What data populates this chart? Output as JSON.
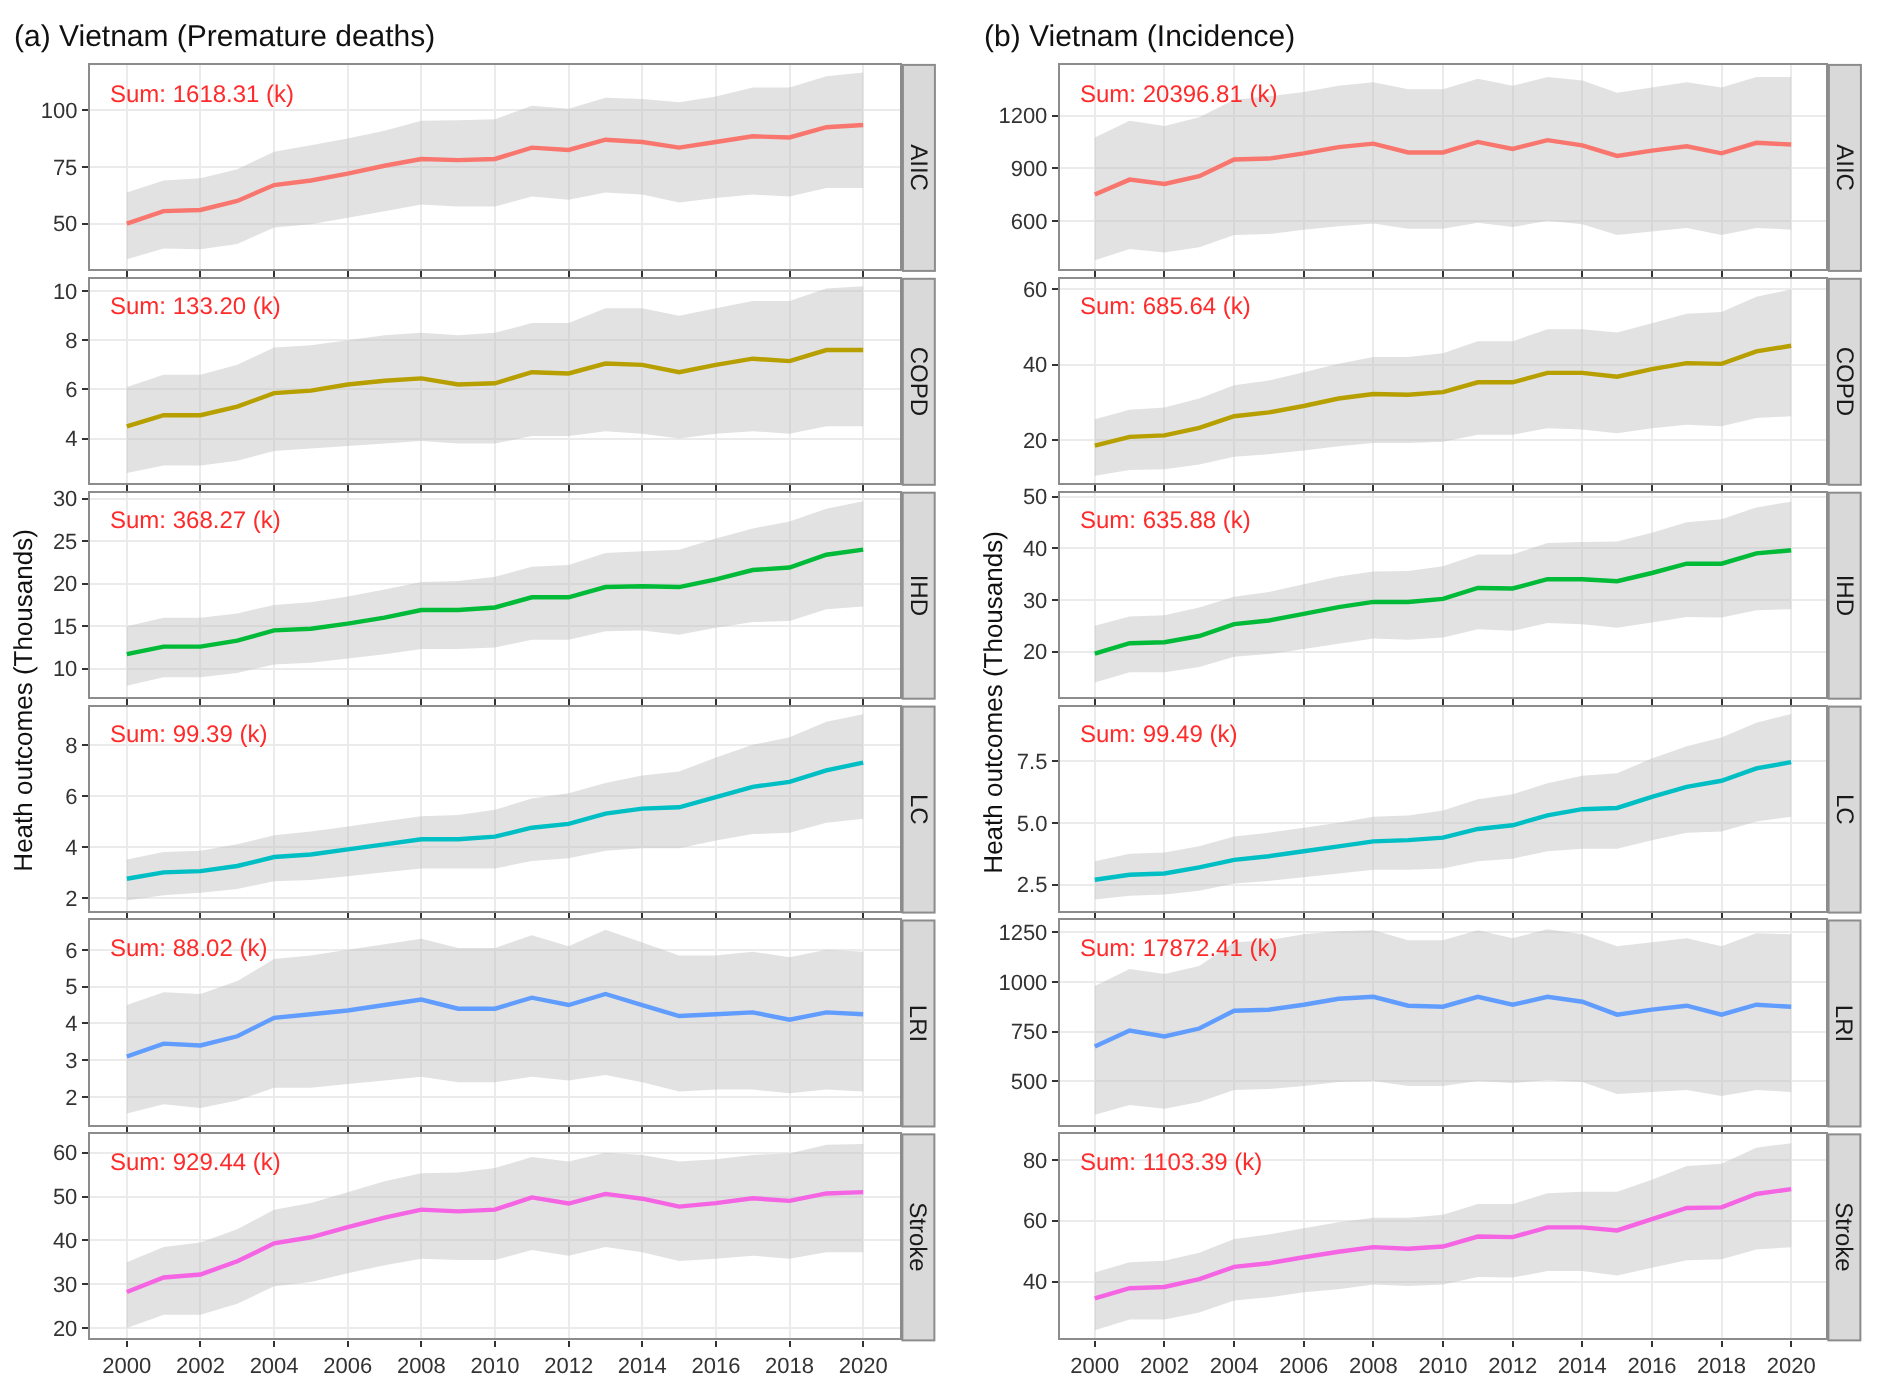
{
  "chart_data": [
    {
      "type": "line",
      "title": "(a) Vietnam (Premature deaths)",
      "x": [
        2000,
        2001,
        2002,
        2003,
        2004,
        2005,
        2006,
        2007,
        2008,
        2009,
        2010,
        2011,
        2012,
        2013,
        2014,
        2015,
        2016,
        2017,
        2018,
        2019,
        2020
      ],
      "xlim": [
        1999,
        2021
      ],
      "xticks": [
        2000,
        2002,
        2004,
        2006,
        2008,
        2010,
        2012,
        2014,
        2016,
        2018,
        2020
      ],
      "ylim": [
        30,
        120
      ],
      "yticks": [
        50,
        75,
        100
      ],
      "grid": true,
      "tick_labels": "y",
      "annotations": [
        "Sum: 1618.31 (k)"
      ],
      "series": [
        {
          "name": "AIIC",
          "color": "#f8766d",
          "values": [
            50,
            55.5,
            56,
            60,
            67,
            69,
            72,
            75.5,
            78.5,
            78,
            78.5,
            83.5,
            82.5,
            87,
            86,
            83.5,
            86,
            88.5,
            88,
            92.5,
            93.5
          ],
          "upper": [
            63.7,
            69,
            70,
            74,
            81.7,
            84.6,
            87.5,
            91,
            95.3,
            95.6,
            96,
            102,
            100.6,
            105.5,
            105,
            103.5,
            106,
            110,
            110,
            115,
            116.6
          ],
          "lower": [
            34.3,
            39,
            38.7,
            41,
            48.3,
            49.7,
            52.6,
            55.5,
            58.4,
            57.5,
            57.5,
            62,
            60.5,
            63.7,
            62.8,
            59.3,
            61.3,
            62.8,
            62,
            65.7,
            65.7
          ]
        }
      ]
    },
    {
      "type": "line",
      "x": [
        2000,
        2001,
        2002,
        2003,
        2004,
        2005,
        2006,
        2007,
        2008,
        2009,
        2010,
        2011,
        2012,
        2013,
        2014,
        2015,
        2016,
        2017,
        2018,
        2019,
        2020
      ],
      "xlim": [
        1999,
        2021
      ],
      "xticks": [
        2000,
        2002,
        2004,
        2006,
        2008,
        2010,
        2012,
        2014,
        2016,
        2018,
        2020
      ],
      "ylim": [
        2.2,
        10.5
      ],
      "yticks": [
        4,
        6,
        8,
        10
      ],
      "grid": true,
      "tick_labels": "y",
      "annotations": [
        "Sum: 133.20 (k)"
      ],
      "series": [
        {
          "name": "COPD",
          "color": "#b79f00",
          "values": [
            4.5,
            4.95,
            4.95,
            5.3,
            5.85,
            5.95,
            6.2,
            6.35,
            6.45,
            6.2,
            6.25,
            6.7,
            6.65,
            7.05,
            7.0,
            6.7,
            7.0,
            7.25,
            7.15,
            7.6,
            7.6
          ],
          "upper": [
            6.1,
            6.6,
            6.6,
            7.0,
            7.7,
            7.8,
            8.0,
            8.2,
            8.3,
            8.2,
            8.3,
            8.7,
            8.7,
            9.3,
            9.3,
            9.0,
            9.3,
            9.6,
            9.6,
            10.1,
            10.2
          ],
          "lower": [
            2.6,
            2.9,
            2.9,
            3.1,
            3.5,
            3.6,
            3.7,
            3.8,
            3.9,
            3.8,
            3.8,
            4.1,
            4.1,
            4.3,
            4.2,
            4.0,
            4.2,
            4.3,
            4.2,
            4.5,
            4.5
          ]
        }
      ]
    },
    {
      "type": "line",
      "ylabel": "Heath outcomes (Thousands)",
      "x": [
        2000,
        2001,
        2002,
        2003,
        2004,
        2005,
        2006,
        2007,
        2008,
        2009,
        2010,
        2011,
        2012,
        2013,
        2014,
        2015,
        2016,
        2017,
        2018,
        2019,
        2020
      ],
      "xlim": [
        1999,
        2021
      ],
      "xticks": [
        2000,
        2002,
        2004,
        2006,
        2008,
        2010,
        2012,
        2014,
        2016,
        2018,
        2020
      ],
      "ylim": [
        6.7,
        30.7
      ],
      "yticks": [
        10,
        15,
        20,
        25,
        30
      ],
      "grid": true,
      "tick_labels": "y",
      "annotations": [
        "Sum: 368.27 (k)"
      ],
      "series": [
        {
          "name": "IHD",
          "color": "#00ba38",
          "values": [
            11.7,
            12.6,
            12.6,
            13.3,
            14.5,
            14.7,
            15.3,
            16.0,
            16.9,
            16.9,
            17.2,
            18.4,
            18.4,
            19.6,
            19.7,
            19.6,
            20.5,
            21.6,
            21.9,
            23.4,
            24.0
          ],
          "upper": [
            15,
            16,
            16,
            16.5,
            17.5,
            17.8,
            18.5,
            19.3,
            20.2,
            20.3,
            20.8,
            22.0,
            22.2,
            23.6,
            23.8,
            24.0,
            25.3,
            26.5,
            27.3,
            28.8,
            29.7
          ],
          "lower": [
            8,
            9,
            9,
            9.5,
            10.5,
            10.7,
            11.2,
            11.7,
            12.3,
            12.3,
            12.5,
            13.4,
            13.4,
            14.4,
            14.5,
            14.0,
            14.8,
            15.5,
            15.6,
            17,
            17.3
          ]
        }
      ]
    },
    {
      "type": "line",
      "x": [
        2000,
        2001,
        2002,
        2003,
        2004,
        2005,
        2006,
        2007,
        2008,
        2009,
        2010,
        2011,
        2012,
        2013,
        2014,
        2015,
        2016,
        2017,
        2018,
        2019,
        2020
      ],
      "xlim": [
        1999,
        2021
      ],
      "xticks": [
        2000,
        2002,
        2004,
        2006,
        2008,
        2010,
        2012,
        2014,
        2016,
        2018,
        2020
      ],
      "ylim": [
        1.5,
        9.5
      ],
      "yticks": [
        2,
        4,
        6,
        8
      ],
      "grid": true,
      "tick_labels": "y",
      "annotations": [
        "Sum: 99.39 (k)"
      ],
      "series": [
        {
          "name": "LC",
          "color": "#00bfc4",
          "values": [
            2.75,
            3.0,
            3.05,
            3.25,
            3.6,
            3.7,
            3.9,
            4.1,
            4.3,
            4.3,
            4.4,
            4.75,
            4.9,
            5.3,
            5.5,
            5.55,
            5.95,
            6.35,
            6.55,
            7.0,
            7.3
          ],
          "upper": [
            3.5,
            3.8,
            3.85,
            4.1,
            4.45,
            4.6,
            4.8,
            5.0,
            5.2,
            5.25,
            5.45,
            5.9,
            6.1,
            6.5,
            6.8,
            6.95,
            7.5,
            8.0,
            8.3,
            8.9,
            9.2
          ],
          "lower": [
            1.9,
            2.1,
            2.2,
            2.35,
            2.65,
            2.7,
            2.85,
            3.0,
            3.15,
            3.15,
            3.15,
            3.45,
            3.55,
            3.85,
            3.95,
            3.95,
            4.25,
            4.5,
            4.55,
            4.95,
            5.1
          ]
        }
      ]
    },
    {
      "type": "line",
      "x": [
        2000,
        2001,
        2002,
        2003,
        2004,
        2005,
        2006,
        2007,
        2008,
        2009,
        2010,
        2011,
        2012,
        2013,
        2014,
        2015,
        2016,
        2017,
        2018,
        2019,
        2020
      ],
      "xlim": [
        1999,
        2021
      ],
      "xticks": [
        2000,
        2002,
        2004,
        2006,
        2008,
        2010,
        2012,
        2014,
        2016,
        2018,
        2020
      ],
      "ylim": [
        1.25,
        6.8
      ],
      "yticks": [
        2,
        3,
        4,
        5,
        6
      ],
      "grid": true,
      "tick_labels": "y",
      "annotations": [
        "Sum: 88.02 (k)"
      ],
      "series": [
        {
          "name": "LRI",
          "color": "#619cff",
          "values": [
            3.1,
            3.45,
            3.4,
            3.65,
            4.15,
            4.25,
            4.35,
            4.5,
            4.65,
            4.4,
            4.4,
            4.7,
            4.5,
            4.8,
            4.5,
            4.2,
            4.25,
            4.3,
            4.1,
            4.3,
            4.25
          ],
          "upper": [
            4.5,
            4.85,
            4.8,
            5.15,
            5.75,
            5.85,
            6.0,
            6.15,
            6.3,
            6.05,
            6.05,
            6.4,
            6.1,
            6.55,
            6.2,
            5.85,
            5.85,
            5.95,
            5.8,
            6.0,
            5.95
          ],
          "lower": [
            1.55,
            1.8,
            1.7,
            1.9,
            2.25,
            2.25,
            2.35,
            2.45,
            2.55,
            2.4,
            2.4,
            2.55,
            2.45,
            2.6,
            2.4,
            2.15,
            2.2,
            2.2,
            2.1,
            2.2,
            2.15
          ]
        }
      ]
    },
    {
      "type": "line",
      "x": [
        2000,
        2001,
        2002,
        2003,
        2004,
        2005,
        2006,
        2007,
        2008,
        2009,
        2010,
        2011,
        2012,
        2013,
        2014,
        2015,
        2016,
        2017,
        2018,
        2019,
        2020
      ],
      "xlim": [
        1999,
        2021
      ],
      "xticks": [
        2000,
        2002,
        2004,
        2006,
        2008,
        2010,
        2012,
        2014,
        2016,
        2018,
        2020
      ],
      "ylim": [
        17.6,
        64.2
      ],
      "yticks": [
        20,
        30,
        40,
        50,
        60
      ],
      "grid": true,
      "annotations": [
        "Sum: 929.44 (k)"
      ],
      "series": [
        {
          "name": "Stroke",
          "color": "#f564e3",
          "values": [
            28.2,
            31.5,
            32.2,
            35.2,
            39.3,
            40.7,
            43,
            45.2,
            47,
            46.6,
            47,
            49.8,
            48.4,
            50.6,
            49.5,
            47.7,
            48.5,
            49.6,
            49,
            50.7,
            51
          ],
          "upper": [
            35,
            38.5,
            39.5,
            42.5,
            47,
            48.5,
            51,
            53.5,
            55.3,
            55.5,
            56.5,
            59,
            58,
            60,
            59.5,
            58,
            58.5,
            59.5,
            59.8,
            61.8,
            62
          ],
          "lower": [
            20,
            23,
            23,
            25.5,
            29.5,
            30.5,
            32.5,
            34.3,
            35.8,
            35.5,
            35.5,
            37.8,
            36.5,
            38.5,
            37.3,
            35.3,
            35.8,
            36.5,
            35.8,
            37.3,
            37.3
          ]
        }
      ]
    },
    {
      "type": "line",
      "title": "(b) Vietnam (Incidence)",
      "x": [
        2000,
        2001,
        2002,
        2003,
        2004,
        2005,
        2006,
        2007,
        2008,
        2009,
        2010,
        2011,
        2012,
        2013,
        2014,
        2015,
        2016,
        2017,
        2018,
        2019,
        2020
      ],
      "xlim": [
        1999,
        2021
      ],
      "xticks": [
        2000,
        2002,
        2004,
        2006,
        2008,
        2010,
        2012,
        2014,
        2016,
        2018,
        2020
      ],
      "ylim": [
        326,
        1489
      ],
      "yticks": [
        600,
        900,
        1200
      ],
      "grid": true,
      "tick_labels": "y",
      "annotations": [
        "Sum: 20396.81 (k)"
      ],
      "series": [
        {
          "name": "AIIC",
          "color": "#f8766d",
          "values": [
            750,
            835,
            810,
            855,
            950,
            955,
            985,
            1020,
            1040,
            990,
            990,
            1050,
            1010,
            1060,
            1030,
            970,
            1000,
            1025,
            985,
            1045,
            1035
          ],
          "upper": [
            1075,
            1170,
            1140,
            1190,
            1290,
            1310,
            1335,
            1370,
            1390,
            1350,
            1350,
            1410,
            1370,
            1420,
            1400,
            1330,
            1360,
            1390,
            1360,
            1420,
            1420
          ],
          "lower": [
            375,
            440,
            420,
            450,
            520,
            525,
            550,
            570,
            585,
            555,
            555,
            590,
            565,
            600,
            580,
            520,
            540,
            560,
            520,
            560,
            550
          ]
        }
      ]
    },
    {
      "type": "line",
      "x": [
        2000,
        2001,
        2002,
        2003,
        2004,
        2005,
        2006,
        2007,
        2008,
        2009,
        2010,
        2011,
        2012,
        2013,
        2014,
        2015,
        2016,
        2017,
        2018,
        2019,
        2020
      ],
      "xlim": [
        1999,
        2021
      ],
      "xticks": [
        2000,
        2002,
        2004,
        2006,
        2008,
        2010,
        2012,
        2014,
        2016,
        2018,
        2020
      ],
      "ylim": [
        8.6,
        62.8
      ],
      "yticks": [
        20,
        40,
        60
      ],
      "grid": true,
      "tick_labels": "y",
      "annotations": [
        "Sum: 685.64 (k)"
      ],
      "series": [
        {
          "name": "COPD",
          "color": "#b79f00",
          "values": [
            18.5,
            20.8,
            21.2,
            23.2,
            26.3,
            27.3,
            29,
            31,
            32.2,
            32,
            32.7,
            35.3,
            35.3,
            37.8,
            37.8,
            36.8,
            38.8,
            40.4,
            40.2,
            43.5,
            45
          ],
          "upper": [
            25.5,
            28,
            28.6,
            31,
            34.5,
            35.8,
            38,
            40.2,
            42,
            42,
            43,
            46.2,
            46.2,
            49.4,
            49.4,
            48.5,
            51,
            53.5,
            54,
            58,
            60
          ],
          "lower": [
            10.5,
            12,
            12.2,
            13.5,
            15.5,
            16.2,
            17.2,
            18.3,
            19.2,
            19.2,
            19.5,
            21.4,
            21.4,
            23.1,
            22.8,
            21.8,
            23.1,
            24,
            23.6,
            25.8,
            26.3
          ]
        }
      ]
    },
    {
      "type": "line",
      "ylabel": "Heath outcomes (Thousands)",
      "x": [
        2000,
        2001,
        2002,
        2003,
        2004,
        2005,
        2006,
        2007,
        2008,
        2009,
        2010,
        2011,
        2012,
        2013,
        2014,
        2015,
        2016,
        2017,
        2018,
        2019,
        2020
      ],
      "xlim": [
        1999,
        2021
      ],
      "xticks": [
        2000,
        2002,
        2004,
        2006,
        2008,
        2010,
        2012,
        2014,
        2016,
        2018,
        2020
      ],
      "ylim": [
        11.25,
        50.75
      ],
      "yticks": [
        20,
        30,
        40,
        50
      ],
      "grid": true,
      "tick_labels": "y",
      "annotations": [
        "Sum: 635.88 (k)"
      ],
      "series": [
        {
          "name": "IHD",
          "color": "#00ba38",
          "values": [
            19.6,
            21.6,
            21.8,
            23,
            25.3,
            26,
            27.3,
            28.6,
            29.6,
            29.6,
            30.2,
            32.3,
            32.2,
            34,
            34,
            33.6,
            35.2,
            37,
            37,
            39,
            39.6
          ],
          "upper": [
            25,
            26.8,
            27,
            28.5,
            30.6,
            31.5,
            33,
            34.5,
            35.5,
            35.6,
            36.5,
            38.8,
            38.8,
            41,
            41.2,
            41.3,
            43,
            45,
            45.6,
            47.9,
            49
          ],
          "lower": [
            14,
            16,
            16,
            17,
            19,
            19.5,
            20.5,
            21.5,
            22.5,
            22.3,
            22.7,
            24.3,
            24,
            25.5,
            25.3,
            24.6,
            25.6,
            26.7,
            26.6,
            28,
            28.2
          ]
        }
      ]
    },
    {
      "type": "line",
      "x": [
        2000,
        2001,
        2002,
        2003,
        2004,
        2005,
        2006,
        2007,
        2008,
        2009,
        2010,
        2011,
        2012,
        2013,
        2014,
        2015,
        2016,
        2017,
        2018,
        2019,
        2020
      ],
      "xlim": [
        1999,
        2021
      ],
      "xticks": [
        2000,
        2002,
        2004,
        2006,
        2008,
        2010,
        2012,
        2014,
        2016,
        2018,
        2020
      ],
      "ylim": [
        1.45,
        9.7
      ],
      "yticks": [
        {
          "value": 2.5,
          "label": "2.5"
        },
        {
          "value": 5,
          "label": "5.0"
        },
        {
          "value": 7.5,
          "label": "7.5"
        }
      ],
      "grid": true,
      "tick_labels": "y",
      "annotations": [
        "Sum: 99.49 (k)"
      ],
      "series": [
        {
          "name": "LC",
          "color": "#00bfc4",
          "values": [
            2.7,
            2.9,
            2.95,
            3.2,
            3.5,
            3.65,
            3.85,
            4.05,
            4.25,
            4.3,
            4.4,
            4.75,
            4.9,
            5.3,
            5.55,
            5.6,
            6.05,
            6.45,
            6.7,
            7.2,
            7.45
          ],
          "upper": [
            3.45,
            3.75,
            3.8,
            4.05,
            4.45,
            4.6,
            4.8,
            5.0,
            5.25,
            5.3,
            5.5,
            5.95,
            6.15,
            6.6,
            6.9,
            7.0,
            7.6,
            8.1,
            8.45,
            9.05,
            9.4
          ],
          "lower": [
            1.9,
            2.05,
            2.1,
            2.25,
            2.55,
            2.65,
            2.8,
            2.95,
            3.1,
            3.1,
            3.15,
            3.45,
            3.55,
            3.85,
            3.95,
            3.95,
            4.3,
            4.6,
            4.65,
            5.05,
            5.25
          ]
        }
      ]
    },
    {
      "type": "line",
      "x": [
        2000,
        2001,
        2002,
        2003,
        2004,
        2005,
        2006,
        2007,
        2008,
        2009,
        2010,
        2011,
        2012,
        2013,
        2014,
        2015,
        2016,
        2017,
        2018,
        2019,
        2020
      ],
      "xlim": [
        1999,
        2021
      ],
      "xticks": [
        2000,
        2002,
        2004,
        2006,
        2008,
        2010,
        2012,
        2014,
        2016,
        2018,
        2020
      ],
      "ylim": [
        281,
        1310
      ],
      "yticks": [
        500,
        750,
        1000,
        1250
      ],
      "grid": true,
      "tick_labels": "y",
      "annotations": [
        "Sum: 17872.41 (k)"
      ],
      "series": [
        {
          "name": "LRI",
          "color": "#619cff",
          "values": [
            675,
            755,
            725,
            765,
            855,
            860,
            885,
            915,
            925,
            880,
            875,
            925,
            885,
            925,
            900,
            835,
            860,
            880,
            835,
            885,
            875
          ],
          "upper": [
            980,
            1065,
            1040,
            1080,
            1200,
            1210,
            1240,
            1255,
            1260,
            1210,
            1210,
            1260,
            1220,
            1265,
            1240,
            1180,
            1200,
            1220,
            1180,
            1245,
            1240
          ],
          "lower": [
            330,
            380,
            360,
            395,
            455,
            460,
            475,
            495,
            500,
            475,
            475,
            500,
            490,
            505,
            495,
            435,
            445,
            455,
            425,
            455,
            445
          ]
        }
      ]
    },
    {
      "type": "line",
      "x": [
        2000,
        2001,
        2002,
        2003,
        2004,
        2005,
        2006,
        2007,
        2008,
        2009,
        2010,
        2011,
        2012,
        2013,
        2014,
        2015,
        2016,
        2017,
        2018,
        2019,
        2020
      ],
      "xlim": [
        1999,
        2021
      ],
      "xticks": [
        2000,
        2002,
        2004,
        2006,
        2008,
        2010,
        2012,
        2014,
        2016,
        2018,
        2020
      ],
      "ylim": [
        21.3,
        88.4
      ],
      "yticks": [
        40,
        60,
        80
      ],
      "grid": true,
      "annotations": [
        "Sum: 1103.39 (k)"
      ],
      "series": [
        {
          "name": "Stroke",
          "color": "#f564e3",
          "values": [
            34.5,
            37.8,
            38.2,
            40.8,
            44.8,
            46,
            48,
            49.8,
            51.3,
            50.8,
            51.5,
            54.8,
            54.6,
            57.8,
            57.8,
            56.8,
            60.5,
            64.2,
            64.4,
            68.8,
            70.4
          ],
          "upper": [
            43,
            46.3,
            46.8,
            49.5,
            54,
            55.5,
            57.5,
            59.5,
            61,
            61,
            62,
            65.5,
            65.5,
            69,
            69.5,
            69.5,
            73.5,
            78,
            78.7,
            84,
            85.5
          ],
          "lower": [
            24,
            27.5,
            27.5,
            29.8,
            33.8,
            34.8,
            36.5,
            37.5,
            39,
            38.5,
            39,
            41.5,
            41.3,
            43.5,
            43.5,
            42,
            44.5,
            47,
            47.3,
            50.5,
            51.3
          ]
        }
      ]
    }
  ]
}
